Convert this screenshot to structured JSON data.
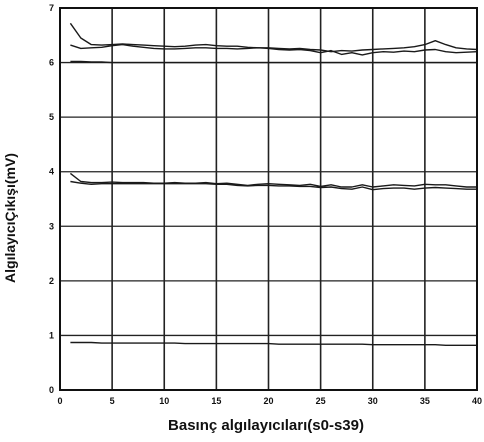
{
  "chart_data": {
    "type": "line",
    "xlabel": "Basınç algılayıcıları(s0-s39)",
    "ylabel": "AlgılayıcıÇıkışı(mV)",
    "xlim": [
      0,
      40
    ],
    "ylim": [
      0,
      7
    ],
    "x_ticks": [
      "0",
      "5",
      "10",
      "15",
      "20",
      "25",
      "30",
      "35",
      "40"
    ],
    "y_ticks": [
      "0",
      "1",
      "2",
      "3",
      "4",
      "5",
      "6",
      "7"
    ],
    "grid": true,
    "line_color": "#1a1a1a",
    "x": [
      1,
      2,
      3,
      4,
      5,
      6,
      7,
      8,
      9,
      10,
      11,
      12,
      13,
      14,
      15,
      16,
      17,
      18,
      19,
      20,
      21,
      22,
      23,
      24,
      25,
      26,
      27,
      28,
      29,
      30,
      31,
      32,
      33,
      34,
      35,
      36,
      37,
      38,
      39,
      40
    ],
    "series": [
      {
        "values": [
          6.72,
          6.45,
          6.33,
          6.32,
          6.33,
          6.34,
          6.33,
          6.32,
          6.31,
          6.3,
          6.29,
          6.3,
          6.32,
          6.33,
          6.31,
          6.3,
          6.3,
          6.28,
          6.27,
          6.27,
          6.26,
          6.25,
          6.26,
          6.24,
          6.23,
          6.2,
          6.22,
          6.21,
          6.23,
          6.24,
          6.25,
          6.26,
          6.27,
          6.29,
          6.33,
          6.4,
          6.33,
          6.27,
          6.25,
          6.24
        ]
      },
      {
        "values": [
          6.32,
          6.26,
          6.27,
          6.28,
          6.31,
          6.33,
          6.3,
          6.28,
          6.26,
          6.25,
          6.25,
          6.26,
          6.27,
          6.27,
          6.26,
          6.26,
          6.25,
          6.26,
          6.27,
          6.26,
          6.24,
          6.23,
          6.24,
          6.22,
          6.18,
          6.22,
          6.15,
          6.18,
          6.14,
          6.18,
          6.2,
          6.19,
          6.21,
          6.2,
          6.23,
          6.24,
          6.2,
          6.18,
          6.19,
          6.2
        ]
      },
      {
        "values": [
          6.02,
          6.02,
          6.01,
          6.01,
          6.0,
          6.0,
          6.0,
          6.0,
          6.0,
          6.0,
          6.0,
          6.0,
          6.0,
          6.0,
          6.0,
          6.0,
          6.0,
          6.0,
          6.0,
          6.0,
          6.0,
          6.0,
          6.0,
          6.0,
          6.0,
          6.0,
          6.0,
          6.0,
          6.0,
          6.0,
          6.0,
          6.0,
          6.0,
          6.0,
          6.0,
          6.0,
          6.0,
          6.0,
          6.0,
          6.0
        ]
      },
      {
        "values": [
          3.97,
          3.82,
          3.8,
          3.8,
          3.81,
          3.8,
          3.8,
          3.8,
          3.79,
          3.79,
          3.8,
          3.79,
          3.79,
          3.8,
          3.78,
          3.79,
          3.77,
          3.75,
          3.77,
          3.78,
          3.77,
          3.76,
          3.75,
          3.77,
          3.73,
          3.76,
          3.72,
          3.72,
          3.76,
          3.72,
          3.74,
          3.76,
          3.75,
          3.74,
          3.77,
          3.76,
          3.76,
          3.74,
          3.72,
          3.72
        ]
      },
      {
        "values": [
          3.82,
          3.79,
          3.77,
          3.78,
          3.78,
          3.78,
          3.78,
          3.78,
          3.78,
          3.78,
          3.78,
          3.78,
          3.78,
          3.78,
          3.77,
          3.77,
          3.75,
          3.74,
          3.75,
          3.75,
          3.74,
          3.74,
          3.73,
          3.73,
          3.71,
          3.72,
          3.69,
          3.68,
          3.72,
          3.67,
          3.69,
          3.7,
          3.7,
          3.68,
          3.7,
          3.71,
          3.7,
          3.69,
          3.68,
          3.68
        ]
      },
      {
        "values": [
          0.87,
          0.87,
          0.87,
          0.86,
          0.86,
          0.86,
          0.86,
          0.86,
          0.86,
          0.86,
          0.86,
          0.85,
          0.85,
          0.85,
          0.85,
          0.85,
          0.85,
          0.85,
          0.85,
          0.85,
          0.84,
          0.84,
          0.84,
          0.84,
          0.84,
          0.84,
          0.84,
          0.84,
          0.84,
          0.83,
          0.83,
          0.83,
          0.83,
          0.83,
          0.83,
          0.83,
          0.82,
          0.82,
          0.82,
          0.82
        ]
      }
    ]
  }
}
